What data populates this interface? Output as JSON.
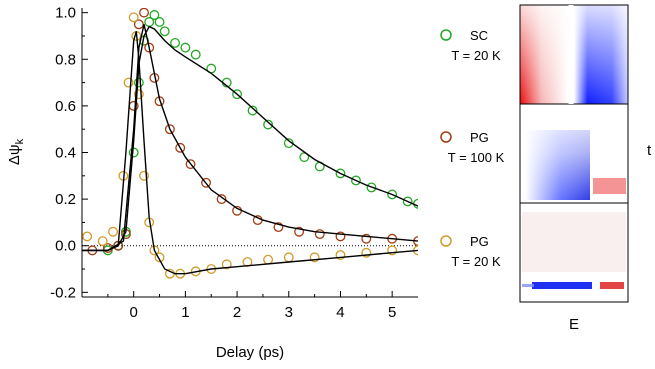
{
  "chart_data": {
    "type": "scatter",
    "xlabel": "Delay (ps)",
    "ylabel": "Δψ",
    "ylabel_sub": "k",
    "xlim": [
      -1.0,
      5.5
    ],
    "ylim": [
      -0.22,
      1.02
    ],
    "xticks": [
      0,
      1,
      2,
      3,
      4,
      5
    ],
    "xtick_labels": [
      "0",
      "1",
      "2",
      "3",
      "4",
      "5"
    ],
    "yticks": [
      -0.2,
      0.0,
      0.2,
      0.4,
      0.6,
      0.8,
      1.0
    ],
    "ytick_labels": [
      "-0.2",
      "0.0",
      "0.2",
      "0.4",
      "0.6",
      "0.8",
      "1.0"
    ],
    "zero_line": true,
    "series": [
      {
        "name": "SC",
        "condition": "T = 20 K",
        "color": "#22a822",
        "x": [
          -0.5,
          -0.3,
          -0.15,
          0.0,
          0.1,
          0.2,
          0.3,
          0.4,
          0.5,
          0.6,
          0.8,
          1.0,
          1.2,
          1.5,
          1.8,
          2.0,
          2.3,
          2.6,
          3.0,
          3.3,
          3.6,
          4.0,
          4.3,
          4.6,
          5.0,
          5.3,
          5.5
        ],
        "y": [
          -0.02,
          0.0,
          0.06,
          0.4,
          0.7,
          0.88,
          0.96,
          0.99,
          0.96,
          0.92,
          0.87,
          0.85,
          0.82,
          0.76,
          0.7,
          0.65,
          0.58,
          0.52,
          0.44,
          0.38,
          0.34,
          0.31,
          0.28,
          0.25,
          0.22,
          0.19,
          0.18
        ]
      },
      {
        "name": "PG",
        "condition": "T = 100 K",
        "color": "#a23a12",
        "x": [
          -0.8,
          -0.5,
          -0.3,
          -0.15,
          0.0,
          0.1,
          0.2,
          0.3,
          0.4,
          0.5,
          0.7,
          0.9,
          1.1,
          1.4,
          1.7,
          2.0,
          2.4,
          2.8,
          3.2,
          3.6,
          4.0,
          4.5,
          5.0,
          5.5
        ],
        "y": [
          -0.02,
          -0.01,
          0.0,
          0.05,
          0.6,
          0.95,
          1.0,
          0.85,
          0.72,
          0.62,
          0.5,
          0.42,
          0.35,
          0.27,
          0.2,
          0.15,
          0.11,
          0.08,
          0.06,
          0.05,
          0.04,
          0.03,
          0.03,
          0.02
        ]
      },
      {
        "name": "PG",
        "condition": "T = 20 K",
        "color": "#d19a28",
        "x": [
          -0.9,
          -0.6,
          -0.4,
          -0.2,
          -0.1,
          0.0,
          0.05,
          0.1,
          0.2,
          0.3,
          0.4,
          0.5,
          0.7,
          0.9,
          1.2,
          1.5,
          1.8,
          2.2,
          2.6,
          3.0,
          3.5,
          4.0,
          4.5,
          5.0,
          5.5
        ],
        "y": [
          0.04,
          0.02,
          0.06,
          0.3,
          0.7,
          0.98,
          0.9,
          0.65,
          0.3,
          0.1,
          -0.02,
          -0.05,
          -0.12,
          -0.12,
          -0.11,
          -0.1,
          -0.08,
          -0.07,
          -0.06,
          -0.05,
          -0.05,
          -0.04,
          -0.03,
          -0.02,
          -0.02
        ]
      }
    ],
    "fit_curves": [
      {
        "series": "SC",
        "x": [
          -1.0,
          -0.5,
          -0.3,
          -0.15,
          0.0,
          0.1,
          0.2,
          0.3,
          0.4,
          0.6,
          0.8,
          1.0,
          1.5,
          2.0,
          2.5,
          3.0,
          3.5,
          4.0,
          4.5,
          5.0,
          5.5
        ],
        "y": [
          -0.02,
          -0.02,
          0.0,
          0.06,
          0.45,
          0.78,
          0.9,
          0.94,
          0.93,
          0.88,
          0.84,
          0.81,
          0.74,
          0.65,
          0.55,
          0.45,
          0.37,
          0.31,
          0.26,
          0.22,
          0.17
        ]
      },
      {
        "series": "PG 100 K",
        "x": [
          -1.0,
          -0.5,
          -0.2,
          0.0,
          0.1,
          0.2,
          0.3,
          0.5,
          0.7,
          1.0,
          1.5,
          2.0,
          2.5,
          3.0,
          3.5,
          4.0,
          5.0,
          5.5
        ],
        "y": [
          -0.02,
          -0.02,
          0.02,
          0.5,
          0.85,
          0.95,
          0.85,
          0.63,
          0.5,
          0.38,
          0.24,
          0.16,
          0.11,
          0.08,
          0.06,
          0.05,
          0.03,
          0.02
        ]
      },
      {
        "series": "PG 20 K",
        "x": [
          -1.0,
          -0.5,
          -0.3,
          -0.15,
          0.0,
          0.05,
          0.1,
          0.2,
          0.3,
          0.4,
          0.6,
          0.8,
          1.0,
          1.5,
          2.0,
          3.0,
          4.0,
          5.0,
          5.5
        ],
        "y": [
          -0.02,
          -0.02,
          0.0,
          0.4,
          0.88,
          0.92,
          0.8,
          0.45,
          0.12,
          -0.02,
          -0.1,
          -0.12,
          -0.12,
          -0.1,
          -0.09,
          -0.07,
          -0.05,
          -0.03,
          -0.02
        ]
      }
    ],
    "legend": [
      {
        "series": "SC",
        "label": "SC",
        "sublabel": "T = 20 K",
        "color": "#22a822"
      },
      {
        "series": "PG 100 K",
        "label": "PG",
        "sublabel": "T = 100 K",
        "color": "#a23a12"
      },
      {
        "series": "PG 20 K",
        "label": "PG",
        "sublabel": "T = 20 K",
        "color": "#d19a28"
      }
    ],
    "heatmap_panels": [
      {
        "panel": "SC 20 K",
        "positive_color": "#e00000",
        "negative_color": "#0010e0"
      },
      {
        "panel": "PG 100 K",
        "positive_color": "#e00000",
        "negative_color": "#0010e0"
      },
      {
        "panel": "PG 20 K",
        "positive_color": "#e00000",
        "negative_color": "#0010e0"
      }
    ],
    "heatmap_xlabel": "E",
    "heatmap_ylabel": "t"
  }
}
